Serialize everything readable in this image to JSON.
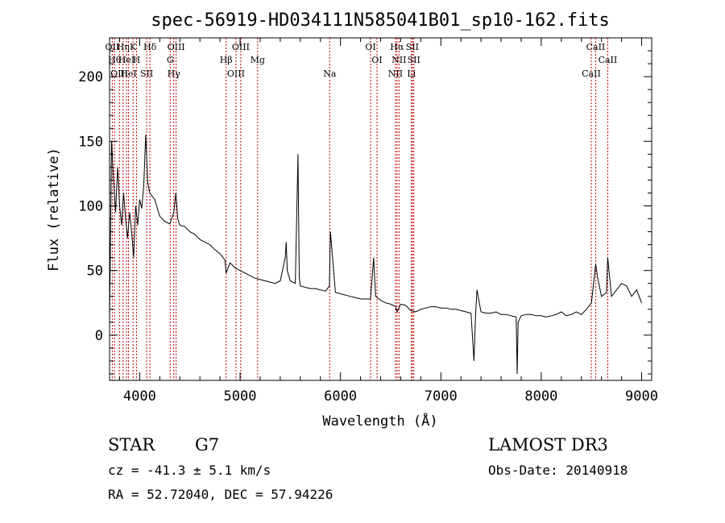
{
  "chart_data": {
    "type": "line",
    "title": "spec-56919-HD034111N585041B01_sp10-162.fits",
    "xlabel": "Wavelength (Å)",
    "ylabel": "Flux (relative)",
    "xlim": [
      3700,
      9100
    ],
    "ylim": [
      -35,
      230
    ],
    "xticks": [
      4000,
      5000,
      6000,
      7000,
      8000,
      9000
    ],
    "yticks": [
      0,
      50,
      100,
      150,
      200
    ],
    "grid": false,
    "series": [
      {
        "color": "#000000",
        "x": [
          3700,
          3720,
          3740,
          3760,
          3780,
          3800,
          3820,
          3840,
          3860,
          3880,
          3900,
          3920,
          3940,
          3960,
          3980,
          4000,
          4020,
          4040,
          4060,
          4080,
          4100,
          4150,
          4200,
          4250,
          4300,
          4340,
          4360,
          4380,
          4400,
          4450,
          4500,
          4550,
          4600,
          4650,
          4700,
          4750,
          4800,
          4850,
          4861,
          4900,
          4950,
          5000,
          5050,
          5100,
          5150,
          5200,
          5250,
          5300,
          5350,
          5400,
          5450,
          5460,
          5470,
          5500,
          5550,
          5577,
          5590,
          5600,
          5650,
          5700,
          5750,
          5800,
          5850,
          5890,
          5900,
          5950,
          6000,
          6050,
          6100,
          6150,
          6200,
          6250,
          6300,
          6330,
          6350,
          6400,
          6450,
          6500,
          6550,
          6563,
          6600,
          6650,
          6700,
          6750,
          6800,
          6850,
          6900,
          6950,
          7000,
          7050,
          7100,
          7150,
          7200,
          7250,
          7300,
          7330,
          7345,
          7360,
          7400,
          7450,
          7500,
          7550,
          7600,
          7650,
          7700,
          7750,
          7760,
          7770,
          7800,
          7850,
          7900,
          7950,
          8000,
          8050,
          8100,
          8150,
          8200,
          8250,
          8300,
          8350,
          8400,
          8450,
          8500,
          8542,
          8560,
          8600,
          8650,
          8662,
          8700,
          8750,
          8800,
          8850,
          8900,
          8950,
          9000
        ],
        "y": [
          10,
          150,
          120,
          95,
          130,
          100,
          85,
          110,
          90,
          75,
          95,
          80,
          60,
          100,
          85,
          105,
          98,
          115,
          155,
          118,
          110,
          105,
          92,
          88,
          86,
          95,
          110,
          90,
          85,
          84,
          80,
          78,
          74,
          72,
          70,
          66,
          63,
          58,
          48,
          56,
          52,
          50,
          48,
          46,
          44,
          43,
          42,
          41,
          40,
          42,
          60,
          72,
          50,
          42,
          40,
          140,
          45,
          38,
          37,
          36,
          36,
          35,
          34,
          38,
          80,
          33,
          32,
          31,
          30,
          29,
          28,
          28,
          28,
          60,
          30,
          27,
          25,
          24,
          22,
          18,
          24,
          23,
          19,
          18,
          20,
          21,
          22,
          22,
          21,
          21,
          20,
          20,
          19,
          18,
          17,
          -20,
          15,
          35,
          18,
          17,
          17,
          18,
          16,
          16,
          15,
          14,
          -30,
          10,
          15,
          16,
          16,
          15,
          15,
          14,
          15,
          16,
          18,
          15,
          16,
          18,
          16,
          20,
          25,
          55,
          45,
          30,
          33,
          60,
          30,
          35,
          40,
          38,
          30,
          35,
          25
        ]
      }
    ],
    "lines": [
      {
        "wl": 3727,
        "label": "OII"
      },
      {
        "wl": 3750,
        "label": "Hθ"
      },
      {
        "wl": 3798,
        "label": "OIII"
      },
      {
        "wl": 3835,
        "label": "Hη"
      },
      {
        "wl": 3869,
        "label": "HeI"
      },
      {
        "wl": 3889,
        "label": "HeI"
      },
      {
        "wl": 3934,
        "label": "K"
      },
      {
        "wl": 3968,
        "label": "H"
      },
      {
        "wl": 4070,
        "label": "SII"
      },
      {
        "wl": 4102,
        "label": "Hδ"
      },
      {
        "wl": 4304,
        "label": "G"
      },
      {
        "wl": 4340,
        "label": "Hγ"
      },
      {
        "wl": 4363,
        "label": "OIII"
      },
      {
        "wl": 4861,
        "label": "Hβ"
      },
      {
        "wl": 4959,
        "label": "OIII"
      },
      {
        "wl": 5007,
        "label": "OIII"
      },
      {
        "wl": 5175,
        "label": "Mg"
      },
      {
        "wl": 5893,
        "label": "Na"
      },
      {
        "wl": 6300,
        "label": "OI"
      },
      {
        "wl": 6364,
        "label": "OI"
      },
      {
        "wl": 6548,
        "label": "NII"
      },
      {
        "wl": 6563,
        "label": "Hα"
      },
      {
        "wl": 6583,
        "label": "NII"
      },
      {
        "wl": 6707,
        "label": "Li"
      },
      {
        "wl": 6716,
        "label": "SII"
      },
      {
        "wl": 6731,
        "label": "SII"
      },
      {
        "wl": 8498,
        "label": "CaII"
      },
      {
        "wl": 8542,
        "label": "CaII"
      },
      {
        "wl": 8662,
        "label": "CaII"
      }
    ]
  },
  "info": {
    "class": "STAR",
    "subclass": "G7",
    "survey": "LAMOST DR3",
    "cz": "cz = -41.3 ± 5.1 km/s",
    "obs_date": "Obs-Date: 20140918",
    "coords": "RA =  52.72040, DEC =  57.94226"
  }
}
